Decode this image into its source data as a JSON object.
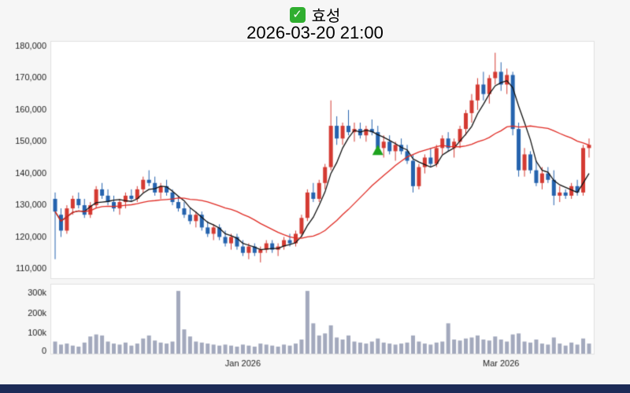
{
  "header": {
    "stock_name": "효성",
    "datetime": "2026-03-20 21:00"
  },
  "chart_data": {
    "type": "candlestick",
    "title": "효성",
    "subtitle": "2026-03-20 21:00",
    "price_axis": {
      "min": 107500,
      "max": 181000,
      "ticks": [
        110000,
        120000,
        130000,
        140000,
        150000,
        160000,
        170000,
        180000
      ],
      "tick_labels": [
        "110,000",
        "120,000",
        "130,000",
        "140,000",
        "150,000",
        "160,000",
        "170,000",
        "180,000"
      ]
    },
    "volume_axis": {
      "max": 330000,
      "ticks": [
        0,
        100000,
        200000,
        300000
      ],
      "tick_labels": [
        "0",
        "100k",
        "200k",
        "300k"
      ]
    },
    "x_axis_labels": [
      {
        "label": "Jan 2026",
        "index": 32
      },
      {
        "label": "Mar 2026",
        "index": 76
      }
    ],
    "moving_averages": [
      {
        "name": "short-ma",
        "window": 5,
        "color": "#111111"
      },
      {
        "name": "long-ma",
        "window": 20,
        "color": "#e02a23"
      }
    ],
    "buy_signal": {
      "index": 55,
      "price": 149000,
      "shape": "triangle-up",
      "color": "#1fa31f"
    },
    "colors": {
      "up": "#d43a32",
      "down": "#2563ae",
      "volume": "#a3a9bd",
      "axis_text": "#222222",
      "panel_bg": "#ffffff",
      "panel_border": "#e0e0e0",
      "page_bg": "#f6f6f6",
      "bottom_bar": "#1d2b57"
    },
    "candles": [
      [
        132000,
        134000,
        113000,
        128000
      ],
      [
        127000,
        129000,
        120000,
        122000
      ],
      [
        122000,
        130000,
        121000,
        129000
      ],
      [
        129000,
        133000,
        127000,
        132000
      ],
      [
        132000,
        134000,
        129000,
        130000
      ],
      [
        130000,
        132000,
        126000,
        127000
      ],
      [
        127000,
        131000,
        126000,
        130000
      ],
      [
        130000,
        136000,
        129000,
        135000
      ],
      [
        135000,
        137000,
        132000,
        133000
      ],
      [
        133000,
        135000,
        130000,
        131000
      ],
      [
        131000,
        133000,
        128000,
        129000
      ],
      [
        129000,
        132000,
        127000,
        131000
      ],
      [
        131000,
        134000,
        129000,
        133000
      ],
      [
        133000,
        135000,
        131000,
        132000
      ],
      [
        132000,
        136000,
        131000,
        135000
      ],
      [
        135000,
        139000,
        134000,
        138000
      ],
      [
        138000,
        141000,
        136000,
        137000
      ],
      [
        137000,
        139000,
        133000,
        134000
      ],
      [
        134000,
        137000,
        132000,
        136000
      ],
      [
        136000,
        138000,
        133000,
        134000
      ],
      [
        134000,
        135000,
        130000,
        131000
      ],
      [
        131000,
        133000,
        128000,
        129000
      ],
      [
        129000,
        131000,
        126000,
        127000
      ],
      [
        127000,
        129000,
        124000,
        125000
      ],
      [
        125000,
        128000,
        123000,
        127000
      ],
      [
        127000,
        128000,
        122000,
        123000
      ],
      [
        123000,
        125000,
        120000,
        121000
      ],
      [
        121000,
        124000,
        119000,
        123000
      ],
      [
        123000,
        124000,
        119000,
        120000
      ],
      [
        120000,
        122000,
        117000,
        118000
      ],
      [
        118000,
        121000,
        116000,
        120000
      ],
      [
        120000,
        121000,
        116000,
        117000
      ],
      [
        117000,
        119000,
        114000,
        115000
      ],
      [
        115000,
        118000,
        113000,
        117000
      ],
      [
        117000,
        118000,
        114000,
        115000
      ],
      [
        115000,
        117000,
        112000,
        116000
      ],
      [
        116000,
        119000,
        115000,
        118000
      ],
      [
        118000,
        119000,
        115000,
        116000
      ],
      [
        116000,
        118000,
        114000,
        117000
      ],
      [
        117000,
        120000,
        116000,
        119000
      ],
      [
        119000,
        121000,
        117000,
        118000
      ],
      [
        118000,
        122000,
        117000,
        121000
      ],
      [
        121000,
        127000,
        120000,
        126000
      ],
      [
        126000,
        135000,
        125000,
        134000
      ],
      [
        134000,
        137000,
        131000,
        132000
      ],
      [
        132000,
        138000,
        131000,
        137000
      ],
      [
        137000,
        143000,
        135000,
        142000
      ],
      [
        142000,
        163000,
        141000,
        155000
      ],
      [
        155000,
        158000,
        149000,
        151000
      ],
      [
        151000,
        156000,
        149000,
        155000
      ],
      [
        155000,
        160000,
        152000,
        153000
      ],
      [
        153000,
        156000,
        150000,
        154000
      ],
      [
        154000,
        156000,
        151000,
        152000
      ],
      [
        152000,
        155000,
        150000,
        154000
      ],
      [
        154000,
        157000,
        152000,
        153000
      ],
      [
        153000,
        155000,
        146000,
        148000
      ],
      [
        148000,
        152000,
        145000,
        150000
      ],
      [
        150000,
        152000,
        146000,
        147000
      ],
      [
        147000,
        150000,
        144000,
        149000
      ],
      [
        149000,
        151000,
        146000,
        147000
      ],
      [
        147000,
        149000,
        143000,
        144000
      ],
      [
        144000,
        146000,
        134000,
        136000
      ],
      [
        136000,
        143000,
        135000,
        142000
      ],
      [
        142000,
        146000,
        140000,
        145000
      ],
      [
        145000,
        148000,
        142000,
        143000
      ],
      [
        143000,
        149000,
        142000,
        148000
      ],
      [
        148000,
        152000,
        146000,
        151000
      ],
      [
        151000,
        153000,
        147000,
        148000
      ],
      [
        148000,
        151000,
        145000,
        150000
      ],
      [
        150000,
        155000,
        148000,
        154000
      ],
      [
        154000,
        160000,
        152000,
        159000
      ],
      [
        159000,
        165000,
        156000,
        163000
      ],
      [
        163000,
        170000,
        160000,
        168000
      ],
      [
        168000,
        172000,
        163000,
        165000
      ],
      [
        165000,
        171000,
        162000,
        170000
      ],
      [
        170000,
        178000,
        168000,
        172000
      ],
      [
        172000,
        175000,
        166000,
        168000
      ],
      [
        168000,
        173000,
        165000,
        171000
      ],
      [
        171000,
        172000,
        152000,
        154000
      ],
      [
        154000,
        156000,
        139000,
        141000
      ],
      [
        141000,
        148000,
        139000,
        146000
      ],
      [
        146000,
        147000,
        140000,
        141000
      ],
      [
        141000,
        144000,
        136000,
        137000
      ],
      [
        137000,
        142000,
        135000,
        140000
      ],
      [
        140000,
        142000,
        137000,
        138000
      ],
      [
        138000,
        141000,
        130000,
        133000
      ],
      [
        133000,
        136000,
        131000,
        134000
      ],
      [
        134000,
        135000,
        132000,
        133000
      ],
      [
        133000,
        137000,
        132000,
        136000
      ],
      [
        136000,
        138000,
        133000,
        134000
      ],
      [
        134000,
        149000,
        133000,
        148000
      ],
      [
        148000,
        151000,
        145000,
        149000
      ]
    ],
    "volumes": [
      60000,
      45000,
      50000,
      40000,
      35000,
      55000,
      85000,
      95000,
      90000,
      60000,
      50000,
      45000,
      55000,
      40000,
      50000,
      75000,
      90000,
      65000,
      55000,
      50000,
      60000,
      310000,
      120000,
      85000,
      60000,
      55000,
      50000,
      45000,
      40000,
      45000,
      40000,
      35000,
      45000,
      40000,
      35000,
      50000,
      45000,
      40000,
      35000,
      45000,
      40000,
      50000,
      70000,
      310000,
      150000,
      90000,
      100000,
      140000,
      80000,
      70000,
      90000,
      60000,
      55000,
      50000,
      60000,
      75000,
      55000,
      50000,
      45000,
      50000,
      55000,
      90000,
      60000,
      50000,
      45000,
      55000,
      60000,
      150000,
      70000,
      65000,
      75000,
      80000,
      90000,
      70000,
      65000,
      85000,
      70000,
      60000,
      95000,
      100000,
      60000,
      55000,
      70000,
      50000,
      45000,
      80000,
      50000,
      40000,
      55000,
      45000,
      75000,
      50000
    ]
  }
}
